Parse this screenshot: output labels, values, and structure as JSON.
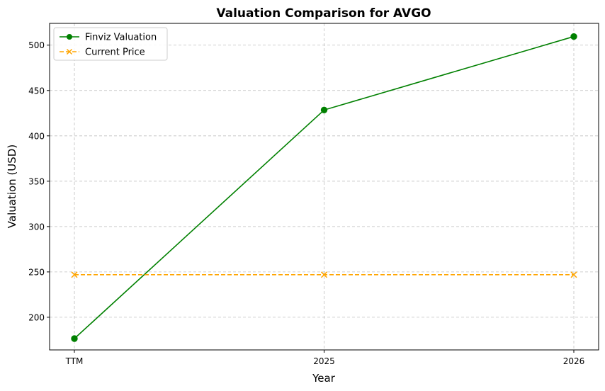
{
  "chart_data": {
    "type": "line",
    "title": "Valuation Comparison for AVGO",
    "xlabel": "Year",
    "ylabel": "Valuation (USD)",
    "categories": [
      "TTM",
      "2025",
      "2026"
    ],
    "ylim": [
      164,
      524
    ],
    "yticks": [
      200,
      250,
      300,
      350,
      400,
      450,
      500
    ],
    "grid": true,
    "legend_position": "top-left",
    "series": [
      {
        "name": "Finviz Valuation",
        "values": [
          176.5,
          428.5,
          509.5
        ],
        "color": "#008000",
        "linestyle": "solid",
        "marker": "circle"
      },
      {
        "name": "Current Price",
        "values": [
          246.9,
          246.9,
          246.9
        ],
        "color": "#ffa500",
        "linestyle": "dashed",
        "marker": "x"
      }
    ]
  }
}
